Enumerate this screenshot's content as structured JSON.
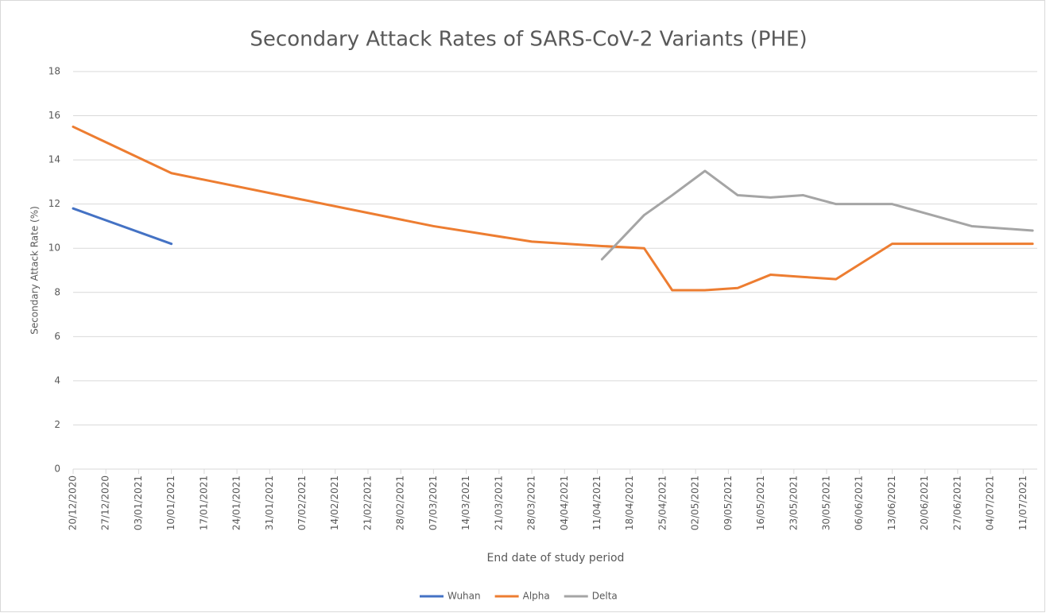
{
  "chart_data": {
    "type": "line",
    "title": "Secondary Attack Rates of SARS-CoV-2 Variants (PHE)",
    "x_label": "End date of study period",
    "y_label": "Secondary Attack Rate (%)",
    "x": [
      "2020-12-20",
      "2021-01-10",
      "2021-03-07",
      "2021-03-28",
      "2021-04-12",
      "2021-04-21",
      "2021-04-27",
      "2021-05-04",
      "2021-05-11",
      "2021-05-18",
      "2021-05-25",
      "2021-06-01",
      "2021-06-13",
      "2021-06-30",
      "2021-07-13"
    ],
    "series": [
      {
        "name": "Wuhan",
        "color": "#4472c4",
        "values": [
          11.8,
          10.2,
          null,
          null,
          null,
          null,
          null,
          null,
          null,
          null,
          null,
          null,
          null,
          null,
          null
        ]
      },
      {
        "name": "Alpha",
        "color": "#ed7d31",
        "values": [
          15.5,
          13.4,
          11.0,
          10.3,
          10.1,
          10.0,
          8.1,
          8.1,
          8.2,
          8.8,
          8.7,
          8.6,
          10.2,
          10.2,
          10.2
        ]
      },
      {
        "name": "Delta",
        "color": "#a5a5a5",
        "values": [
          null,
          null,
          null,
          null,
          9.5,
          11.5,
          12.4,
          13.5,
          12.4,
          12.3,
          12.4,
          12.0,
          12.0,
          11.0,
          10.8
        ]
      }
    ],
    "xlim": [
      "2020-12-20",
      "2021-07-14"
    ],
    "xticks": [
      {
        "value": "2020-12-20",
        "label": "20/12/2020"
      },
      {
        "value": "2020-12-27",
        "label": "27/12/2020"
      },
      {
        "value": "2021-01-03",
        "label": "03/01/2021"
      },
      {
        "value": "2021-01-10",
        "label": "10/01/2021"
      },
      {
        "value": "2021-01-17",
        "label": "17/01/2021"
      },
      {
        "value": "2021-01-24",
        "label": "24/01/2021"
      },
      {
        "value": "2021-01-31",
        "label": "31/01/2021"
      },
      {
        "value": "2021-02-07",
        "label": "07/02/2021"
      },
      {
        "value": "2021-02-14",
        "label": "14/02/2021"
      },
      {
        "value": "2021-02-21",
        "label": "21/02/2021"
      },
      {
        "value": "2021-02-28",
        "label": "28/02/2021"
      },
      {
        "value": "2021-03-07",
        "label": "07/03/2021"
      },
      {
        "value": "2021-03-14",
        "label": "14/03/2021"
      },
      {
        "value": "2021-03-21",
        "label": "21/03/2021"
      },
      {
        "value": "2021-03-28",
        "label": "28/03/2021"
      },
      {
        "value": "2021-04-04",
        "label": "04/04/2021"
      },
      {
        "value": "2021-04-11",
        "label": "11/04/2021"
      },
      {
        "value": "2021-04-18",
        "label": "18/04/2021"
      },
      {
        "value": "2021-04-25",
        "label": "25/04/2021"
      },
      {
        "value": "2021-05-02",
        "label": "02/05/2021"
      },
      {
        "value": "2021-05-09",
        "label": "09/05/2021"
      },
      {
        "value": "2021-05-16",
        "label": "16/05/2021"
      },
      {
        "value": "2021-05-23",
        "label": "23/05/2021"
      },
      {
        "value": "2021-05-30",
        "label": "30/05/2021"
      },
      {
        "value": "2021-06-06",
        "label": "06/06/2021"
      },
      {
        "value": "2021-06-13",
        "label": "13/06/2021"
      },
      {
        "value": "2021-06-20",
        "label": "20/06/2021"
      },
      {
        "value": "2021-06-27",
        "label": "27/06/2021"
      },
      {
        "value": "2021-07-04",
        "label": "04/07/2021"
      },
      {
        "value": "2021-07-11",
        "label": "11/07/2021"
      }
    ],
    "ylim": [
      0,
      18
    ],
    "yticks": [
      0,
      2,
      4,
      6,
      8,
      10,
      12,
      14,
      16,
      18
    ],
    "grid": true,
    "legend": "bottom"
  }
}
